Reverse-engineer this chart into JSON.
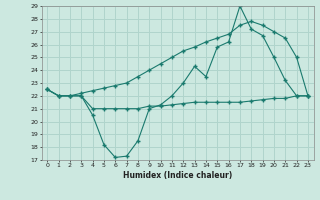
{
  "xlabel": "Humidex (Indice chaleur)",
  "xlim": [
    -0.5,
    23.5
  ],
  "ylim": [
    17,
    29
  ],
  "yticks": [
    17,
    18,
    19,
    20,
    21,
    22,
    23,
    24,
    25,
    26,
    27,
    28,
    29
  ],
  "xticks": [
    0,
    1,
    2,
    3,
    4,
    5,
    6,
    7,
    8,
    9,
    10,
    11,
    12,
    13,
    14,
    15,
    16,
    17,
    18,
    19,
    20,
    21,
    22,
    23
  ],
  "bg_color": "#cce8e0",
  "line_color": "#1a7a6e",
  "grid_color": "#b0d4cc",
  "line1_x": [
    0,
    1,
    2,
    3,
    4,
    5,
    6,
    7,
    8,
    9,
    10,
    11,
    12,
    13,
    14,
    15,
    16,
    17,
    18,
    19,
    20,
    21,
    22,
    23
  ],
  "line1_y": [
    22.5,
    22.0,
    22.0,
    22.0,
    20.5,
    18.2,
    17.2,
    17.3,
    18.5,
    21.0,
    21.3,
    22.0,
    23.0,
    24.3,
    23.5,
    25.8,
    26.2,
    29.0,
    27.2,
    26.7,
    25.0,
    23.2,
    22.0,
    22.0
  ],
  "line2_x": [
    0,
    1,
    2,
    3,
    4,
    5,
    6,
    7,
    8,
    9,
    10,
    11,
    12,
    13,
    14,
    15,
    16,
    17,
    18,
    19,
    20,
    21,
    22,
    23
  ],
  "line2_y": [
    22.5,
    22.0,
    22.0,
    22.2,
    22.4,
    22.6,
    22.8,
    23.0,
    23.5,
    24.0,
    24.5,
    25.0,
    25.5,
    25.8,
    26.2,
    26.5,
    26.8,
    27.5,
    27.8,
    27.5,
    27.0,
    26.5,
    25.0,
    22.0
  ],
  "line3_x": [
    0,
    1,
    2,
    3,
    4,
    5,
    6,
    7,
    8,
    9,
    10,
    11,
    12,
    13,
    14,
    15,
    16,
    17,
    18,
    19,
    20,
    21,
    22,
    23
  ],
  "line3_y": [
    22.5,
    22.0,
    22.0,
    22.0,
    21.0,
    21.0,
    21.0,
    21.0,
    21.0,
    21.2,
    21.2,
    21.3,
    21.4,
    21.5,
    21.5,
    21.5,
    21.5,
    21.5,
    21.6,
    21.7,
    21.8,
    21.8,
    22.0,
    22.0
  ]
}
